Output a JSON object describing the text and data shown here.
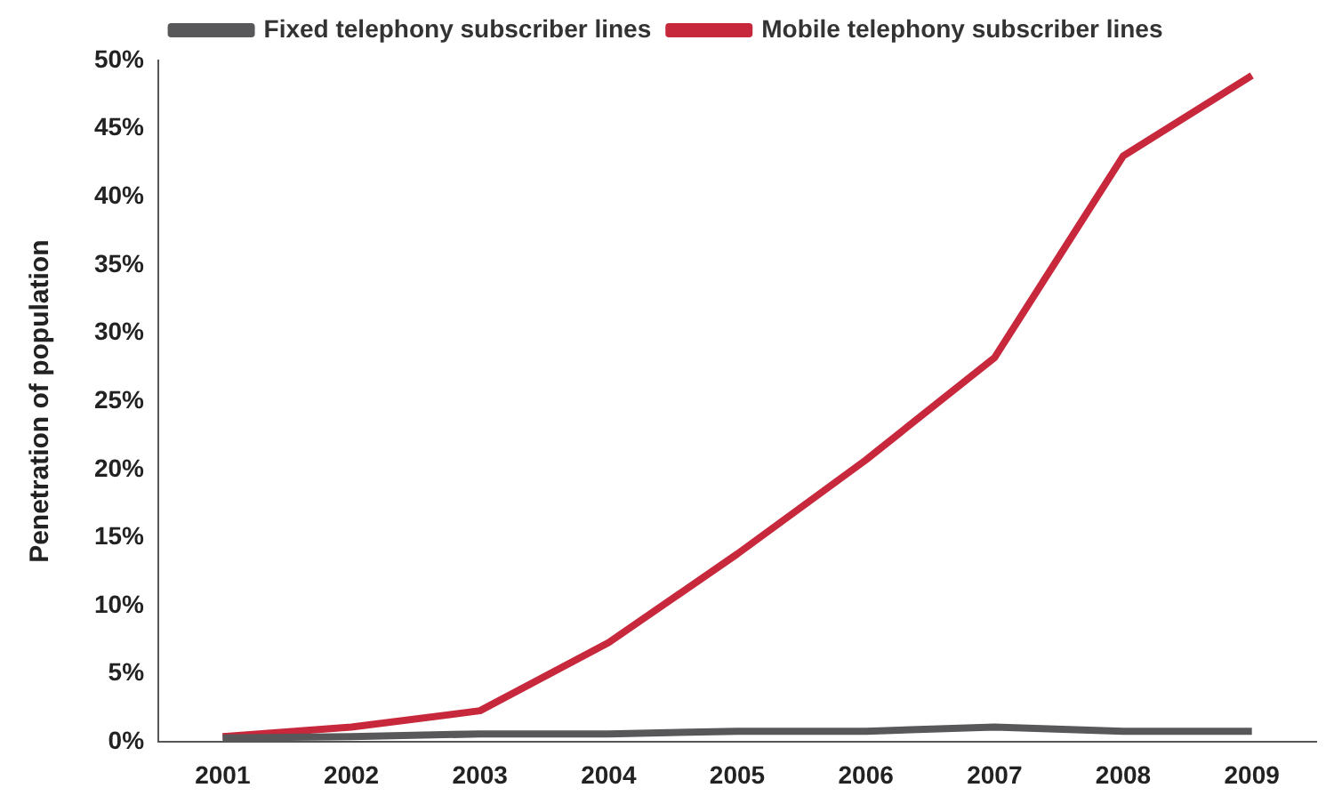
{
  "chart_data": {
    "type": "line",
    "ylabel": "Penetration of population",
    "categories": [
      "2001",
      "2002",
      "2003",
      "2004",
      "2005",
      "2006",
      "2007",
      "2008",
      "2009"
    ],
    "series": [
      {
        "name": "Fixed telephony subscriber lines",
        "color": "#58585a",
        "values": [
          0.3,
          0.4,
          0.6,
          0.6,
          0.8,
          0.8,
          1.1,
          0.8,
          0.8
        ]
      },
      {
        "name": "Mobile telephony subscriber lines",
        "color": "#c8283c",
        "values": [
          0.4,
          1.1,
          2.3,
          7.3,
          13.8,
          20.7,
          28.2,
          43,
          48.9
        ]
      }
    ],
    "ylim": [
      0,
      50
    ],
    "yticks": [
      {
        "value": 0,
        "label": "0%"
      },
      {
        "value": 5,
        "label": "5%"
      },
      {
        "value": 10,
        "label": "10%"
      },
      {
        "value": 15,
        "label": "15%"
      },
      {
        "value": 20,
        "label": "20%"
      },
      {
        "value": 25,
        "label": "25%"
      },
      {
        "value": 30,
        "label": "30%"
      },
      {
        "value": 35,
        "label": "35%"
      },
      {
        "value": 40,
        "label": "40%"
      },
      {
        "value": 45,
        "label": "45%"
      },
      {
        "value": 50,
        "label": "50%"
      }
    ],
    "grid": false,
    "legend": "top",
    "marker": "none",
    "line_style": "solid"
  }
}
